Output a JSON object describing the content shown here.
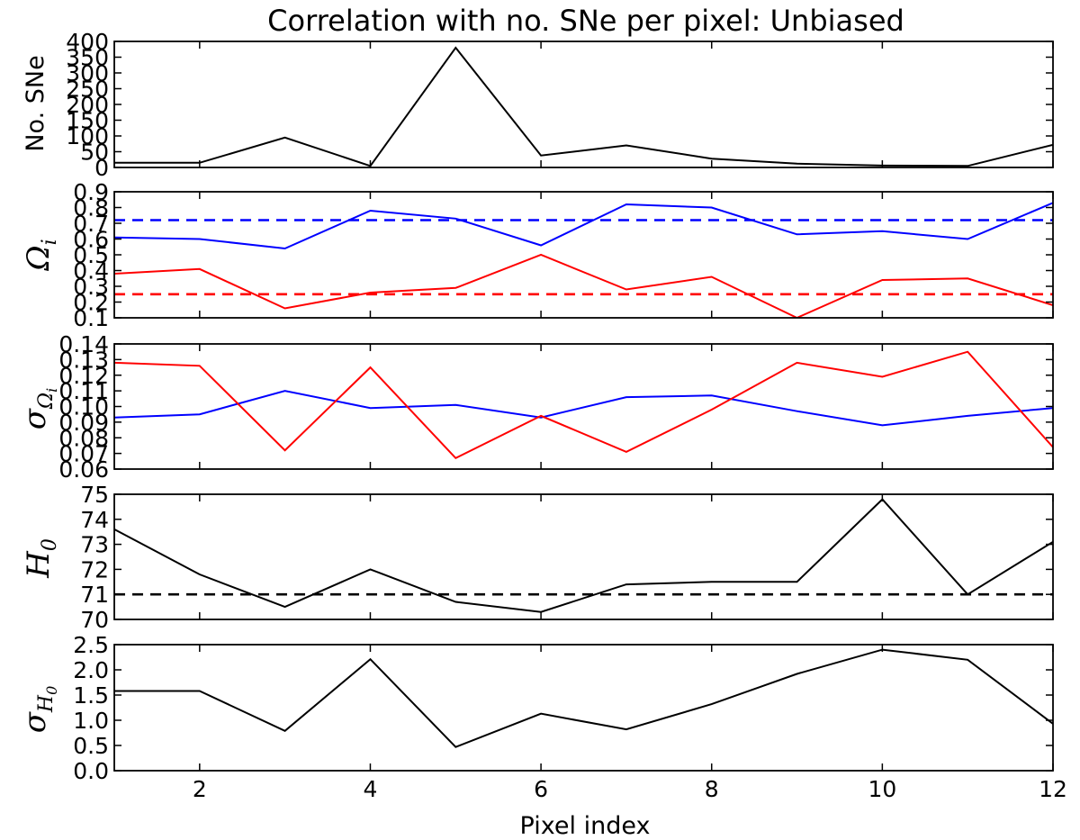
{
  "chart_data": {
    "type": "line",
    "title": "Correlation with no. SNe per pixel: Unbiased",
    "xlabel": "Pixel index",
    "xlim": [
      1,
      12
    ],
    "xticks": [
      2,
      4,
      6,
      8,
      10,
      12
    ],
    "xtick_labels": [
      "2",
      "4",
      "6",
      "8",
      "10",
      "12"
    ],
    "x": [
      1,
      2,
      3,
      4,
      5,
      6,
      7,
      8,
      9,
      10,
      11,
      12
    ],
    "panels": [
      {
        "id": "nsne",
        "ylabel": "No. SNe",
        "ylim": [
          0,
          400
        ],
        "yticks": [
          0,
          50,
          100,
          150,
          200,
          250,
          300,
          350,
          400
        ],
        "ytick_labels": [
          "0",
          "50",
          "100",
          "150",
          "200",
          "250",
          "300",
          "350",
          "400"
        ],
        "series": [
          {
            "name": "No. SNe",
            "color": "#000000",
            "dashed": false,
            "values": [
              15,
              15,
              95,
              5,
              380,
              38,
              70,
              28,
              12,
              6,
              5,
              72
            ]
          }
        ]
      },
      {
        "id": "omega",
        "ylabel_symbol": "Ω",
        "ylabel_sub": "i",
        "ylim": [
          0.1,
          0.9
        ],
        "yticks": [
          0.1,
          0.2,
          0.3,
          0.4,
          0.5,
          0.6,
          0.7,
          0.8,
          0.9
        ],
        "ytick_labels": [
          "0.1",
          "0.2",
          "0.3",
          "0.4",
          "0.5",
          "0.6",
          "0.7",
          "0.8",
          "0.9"
        ],
        "series": [
          {
            "name": "Omega blue",
            "color": "#0000ff",
            "dashed": false,
            "values": [
              0.61,
              0.6,
              0.54,
              0.78,
              0.73,
              0.56,
              0.82,
              0.8,
              0.63,
              0.65,
              0.6,
              0.83
            ]
          },
          {
            "name": "Omega red",
            "color": "#ff0000",
            "dashed": false,
            "values": [
              0.38,
              0.41,
              0.16,
              0.26,
              0.29,
              0.5,
              0.28,
              0.36,
              0.1,
              0.34,
              0.35,
              0.18
            ]
          },
          {
            "name": "Omega blue reference",
            "color": "#0000ff",
            "dashed": true,
            "values": [
              0.72,
              0.72,
              0.72,
              0.72,
              0.72,
              0.72,
              0.72,
              0.72,
              0.72,
              0.72,
              0.72,
              0.72
            ]
          },
          {
            "name": "Omega red reference",
            "color": "#ff0000",
            "dashed": true,
            "values": [
              0.25,
              0.25,
              0.25,
              0.25,
              0.25,
              0.25,
              0.25,
              0.25,
              0.25,
              0.25,
              0.25,
              0.25
            ]
          }
        ]
      },
      {
        "id": "sigma_omega",
        "ylabel_symbol": "σ",
        "ylabel_sub": "Ω",
        "ylabel_subsub": "i",
        "ylim": [
          0.06,
          0.14
        ],
        "yticks": [
          0.06,
          0.07,
          0.08,
          0.09,
          0.1,
          0.11,
          0.12,
          0.13,
          0.14
        ],
        "ytick_labels": [
          "0.06",
          "0.07",
          "0.08",
          "0.09",
          "0.10",
          "0.11",
          "0.12",
          "0.13",
          "0.14"
        ],
        "series": [
          {
            "name": "sigma Omega blue",
            "color": "#0000ff",
            "dashed": false,
            "values": [
              0.093,
              0.095,
              0.11,
              0.099,
              0.101,
              0.093,
              0.106,
              0.107,
              0.097,
              0.088,
              0.094,
              0.099
            ]
          },
          {
            "name": "sigma Omega red",
            "color": "#ff0000",
            "dashed": false,
            "values": [
              0.128,
              0.126,
              0.072,
              0.125,
              0.067,
              0.094,
              0.071,
              0.098,
              0.128,
              0.119,
              0.135,
              0.074
            ]
          }
        ]
      },
      {
        "id": "h0",
        "ylabel_symbol": "H",
        "ylabel_sub": "0",
        "ylim": [
          70,
          75
        ],
        "yticks": [
          70,
          71,
          72,
          73,
          74,
          75
        ],
        "ytick_labels": [
          "70",
          "71",
          "72",
          "73",
          "74",
          "75"
        ],
        "series": [
          {
            "name": "H0",
            "color": "#000000",
            "dashed": false,
            "values": [
              73.6,
              71.8,
              70.5,
              72.0,
              70.7,
              70.3,
              71.4,
              71.5,
              71.5,
              74.8,
              71.0,
              73.1
            ]
          },
          {
            "name": "H0 reference",
            "color": "#000000",
            "dashed": true,
            "values": [
              71.0,
              71.0,
              71.0,
              71.0,
              71.0,
              71.0,
              71.0,
              71.0,
              71.0,
              71.0,
              71.0,
              71.0
            ]
          }
        ]
      },
      {
        "id": "sigma_h0",
        "ylabel_symbol": "σ",
        "ylabel_sub": "H",
        "ylabel_subsub": "0",
        "ylim": [
          0.0,
          2.5
        ],
        "yticks": [
          0.0,
          0.5,
          1.0,
          1.5,
          2.0,
          2.5
        ],
        "ytick_labels": [
          "0.0",
          "0.5",
          "1.0",
          "1.5",
          "2.0",
          "2.5"
        ],
        "series": [
          {
            "name": "sigma H0",
            "color": "#000000",
            "dashed": false,
            "values": [
              1.58,
              1.58,
              0.79,
              2.21,
              0.47,
              1.13,
              0.82,
              1.32,
              1.92,
              2.4,
              2.2,
              0.93
            ]
          }
        ]
      }
    ]
  }
}
